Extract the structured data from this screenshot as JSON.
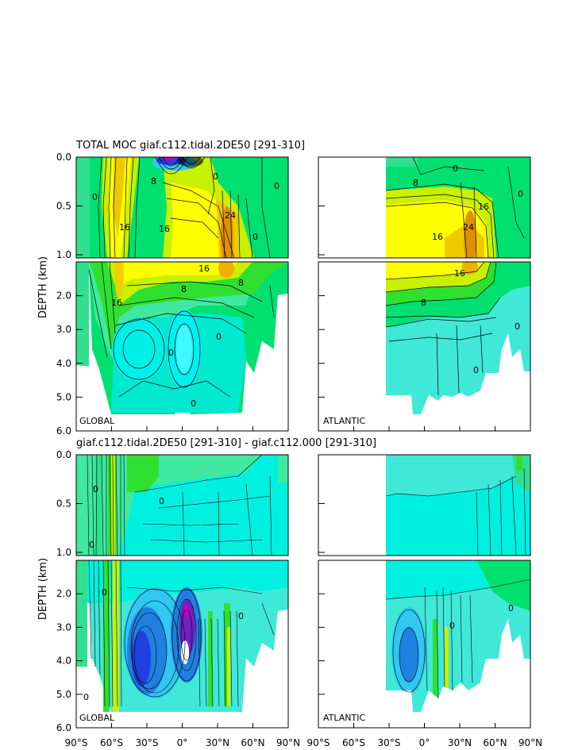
{
  "chart_data": {
    "type": "heatmap",
    "subtype": "contour-filled",
    "title_top": "TOTAL MOC giaf.c112.tidal.2DE50 [291-310]",
    "title_bottom": "giaf.c112.tidal.2DE50 [291-310] - giaf.c112.000 [291-310]",
    "ylabel": "DEPTH (km)",
    "upper_yticks": [
      "0.0",
      "0.5",
      "1.0"
    ],
    "upper_ylim": [
      0,
      1
    ],
    "lower_yticks": [
      "2.0",
      "3.0",
      "4.0",
      "5.0",
      "6.0"
    ],
    "lower_ylim": [
      1,
      6
    ],
    "xticks": [
      "90°S",
      "60°S",
      "30°S",
      "0°",
      "30°N",
      "60°N",
      "90°N"
    ],
    "xlim": [
      -90,
      90
    ],
    "region_labels": {
      "global": "GLOBAL",
      "atlantic": "ATLANTIC"
    },
    "contour_labels_global_total": [
      "16",
      "16",
      "8",
      "16",
      "24",
      "0",
      "0",
      "0",
      "16",
      "8",
      "16",
      "8",
      "0",
      "0",
      "0",
      "0"
    ],
    "contour_labels_atlantic_total": [
      "8",
      "0",
      "16",
      "16",
      "24",
      "16",
      "8",
      "0",
      "0",
      "0"
    ],
    "contour_labels_diff": [
      "0",
      "0",
      "0",
      "0",
      "0",
      "0",
      "0",
      "0"
    ],
    "colors": {
      "green": "#00e070",
      "lightgreen": "#30e030",
      "yellow": "#ffff00",
      "orange": "#f0b000",
      "cyan": "#00f0e0",
      "aqua": "#40e8d8",
      "lightblue": "#30c8f0",
      "blue": "#2040e0",
      "purple": "#7020c0",
      "magenta": "#c000c0"
    },
    "fields": {
      "global_total": [
        {
          "lat": -60,
          "depth": 0.5,
          "value": 20,
          "ry": 0.5
        },
        {
          "lat": 15,
          "depth": 0.8,
          "value": 16
        },
        {
          "lat": 40,
          "depth": 1.2,
          "value": 24
        },
        {
          "lat": -15,
          "depth": 0.02,
          "value": -20
        },
        {
          "lat": -30,
          "depth": 4.0,
          "value": -4
        }
      ],
      "atlantic_total": [
        {
          "lat": 20,
          "depth": 0.8,
          "value": 16
        },
        {
          "lat": 40,
          "depth": 1.1,
          "value": 24
        }
      ]
    }
  }
}
